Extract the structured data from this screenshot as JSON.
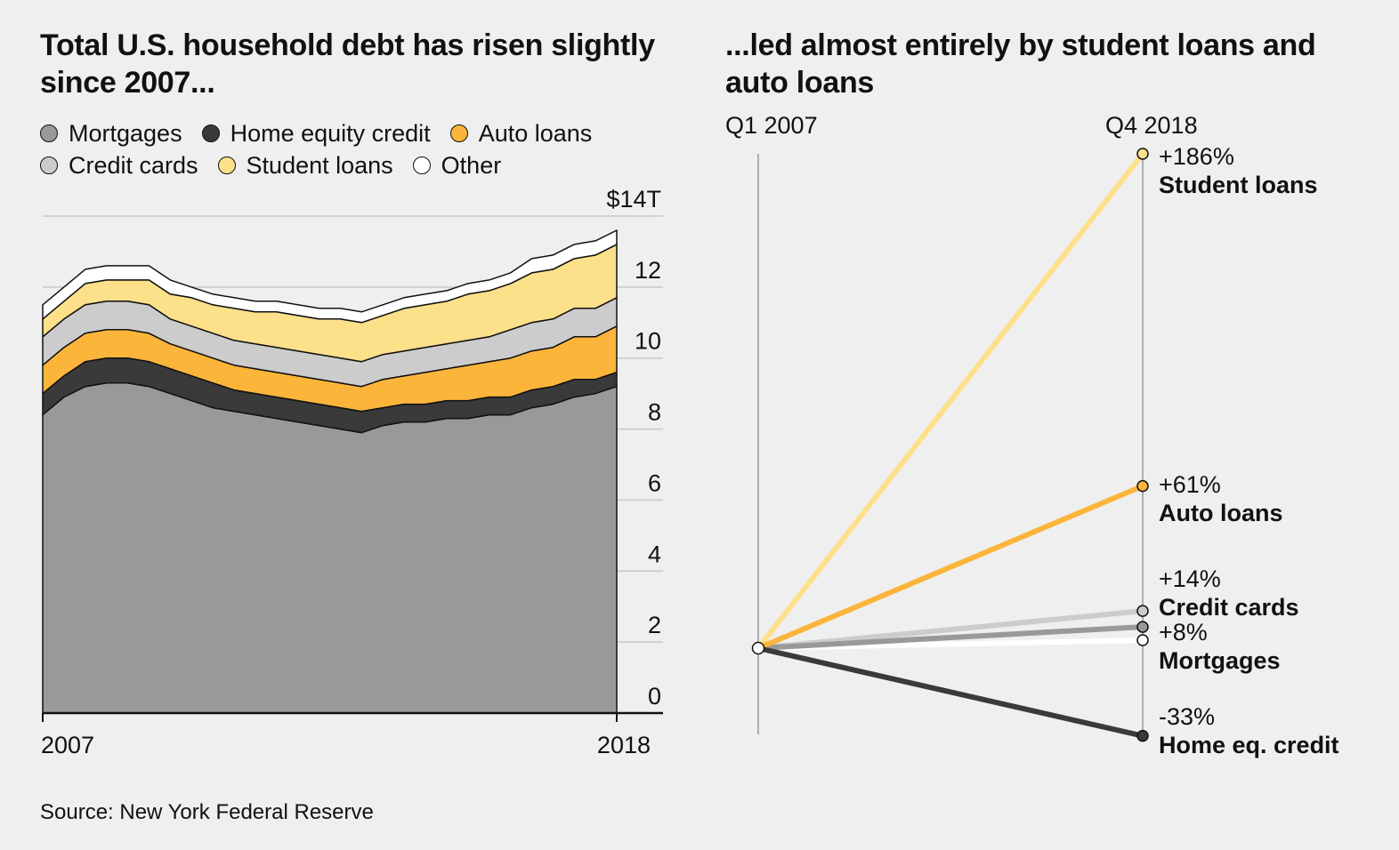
{
  "titles": {
    "left": "Total U.S. household debt has risen slightly since 2007...",
    "right": "...led almost entirely by student loans and auto loans"
  },
  "source": "Source: New York Federal Reserve",
  "colors": {
    "mortgages": "#999999",
    "home_equity": "#3a3a3a",
    "auto": "#fbb53b",
    "credit_cards": "#cccccc",
    "student": "#fde08a",
    "other": "#ffffff",
    "axis": "#111111",
    "grid": "#c8c8c8",
    "background": "#f0efef"
  },
  "legend": [
    {
      "key": "mortgages",
      "label": "Mortgages"
    },
    {
      "key": "home_equity",
      "label": "Home equity credit"
    },
    {
      "key": "auto",
      "label": "Auto loans"
    },
    {
      "key": "credit_cards",
      "label": "Credit cards"
    },
    {
      "key": "student",
      "label": "Student loans"
    },
    {
      "key": "other",
      "label": "Other"
    }
  ],
  "chart_data": [
    {
      "type": "area",
      "stacked": true,
      "x_start_label": "2007",
      "x_end_label": "2018",
      "y_tick_labels": [
        "0",
        "2",
        "4",
        "6",
        "8",
        "10",
        "12",
        "$14T"
      ],
      "ylim": [
        0,
        14
      ],
      "grid": true,
      "series": [
        {
          "name": "Mortgages",
          "key": "mortgages",
          "values": [
            8.4,
            8.9,
            9.2,
            9.3,
            9.3,
            9.2,
            9.0,
            8.8,
            8.6,
            8.5,
            8.4,
            8.3,
            8.2,
            8.1,
            8.0,
            7.9,
            8.1,
            8.2,
            8.2,
            8.3,
            8.3,
            8.4,
            8.4,
            8.6,
            8.7,
            8.9,
            9.0,
            9.2
          ]
        },
        {
          "name": "Home equity credit",
          "key": "home_equity",
          "values": [
            0.6,
            0.6,
            0.7,
            0.7,
            0.7,
            0.7,
            0.7,
            0.7,
            0.7,
            0.6,
            0.6,
            0.6,
            0.6,
            0.6,
            0.6,
            0.6,
            0.5,
            0.5,
            0.5,
            0.5,
            0.5,
            0.5,
            0.5,
            0.5,
            0.5,
            0.5,
            0.4,
            0.4
          ]
        },
        {
          "name": "Auto loans",
          "key": "auto",
          "values": [
            0.8,
            0.8,
            0.8,
            0.8,
            0.8,
            0.8,
            0.7,
            0.7,
            0.7,
            0.7,
            0.7,
            0.7,
            0.7,
            0.7,
            0.7,
            0.7,
            0.8,
            0.8,
            0.9,
            0.9,
            1.0,
            1.0,
            1.1,
            1.1,
            1.1,
            1.2,
            1.2,
            1.3
          ]
        },
        {
          "name": "Credit cards",
          "key": "credit_cards",
          "values": [
            0.8,
            0.8,
            0.8,
            0.8,
            0.8,
            0.8,
            0.7,
            0.7,
            0.7,
            0.7,
            0.7,
            0.7,
            0.7,
            0.7,
            0.7,
            0.7,
            0.7,
            0.7,
            0.7,
            0.7,
            0.7,
            0.7,
            0.8,
            0.8,
            0.8,
            0.8,
            0.8,
            0.8
          ]
        },
        {
          "name": "Student loans",
          "key": "student",
          "values": [
            0.5,
            0.5,
            0.6,
            0.6,
            0.6,
            0.7,
            0.7,
            0.8,
            0.8,
            0.9,
            0.9,
            1.0,
            1.0,
            1.0,
            1.1,
            1.1,
            1.1,
            1.2,
            1.2,
            1.2,
            1.3,
            1.3,
            1.3,
            1.4,
            1.4,
            1.4,
            1.5,
            1.5
          ]
        },
        {
          "name": "Other",
          "key": "other",
          "values": [
            0.4,
            0.4,
            0.4,
            0.4,
            0.4,
            0.4,
            0.4,
            0.3,
            0.3,
            0.3,
            0.3,
            0.3,
            0.3,
            0.3,
            0.3,
            0.3,
            0.3,
            0.3,
            0.3,
            0.3,
            0.3,
            0.3,
            0.3,
            0.4,
            0.4,
            0.4,
            0.4,
            0.4
          ]
        }
      ]
    },
    {
      "type": "line",
      "subtype": "slope",
      "start_label": "Q1 2007",
      "end_label": "Q4 2018",
      "ylim": [
        -45,
        200
      ],
      "series": [
        {
          "key": "student",
          "name": "Student loans",
          "start": 0,
          "end": 186,
          "pct_label": "+186%"
        },
        {
          "key": "auto",
          "name": "Auto loans",
          "start": 0,
          "end": 61,
          "pct_label": "+61%"
        },
        {
          "key": "credit_cards",
          "name": "Credit cards",
          "start": 0,
          "end": 14,
          "pct_label": "+14%"
        },
        {
          "key": "mortgages",
          "name": "Mortgages",
          "start": 0,
          "end": 8,
          "pct_label": "+8%"
        },
        {
          "key": "other",
          "name": "",
          "start": 0,
          "end": 3,
          "pct_label": ""
        },
        {
          "key": "home_equity",
          "name": "Home eq. credit",
          "start": 0,
          "end": -33,
          "pct_label": "-33%"
        }
      ]
    }
  ]
}
